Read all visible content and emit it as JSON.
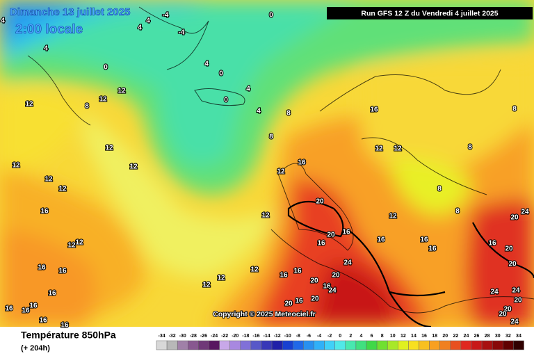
{
  "header": {
    "date": "Dimanche 13 juillet 2025",
    "time": "2:00 locale",
    "run": "Run GFS 12 Z du Vendredi 4 juillet 2025",
    "copyright": "Copyright © 2025 Meteociel.fr"
  },
  "legend": {
    "title": "Température 850hPa",
    "lead": "(+ 204h)",
    "scale": [
      {
        "value": -34,
        "color": "#d8d8d8"
      },
      {
        "value": -32,
        "color": "#b8b8b8"
      },
      {
        "value": -30,
        "color": "#a080a8"
      },
      {
        "value": -28,
        "color": "#885890"
      },
      {
        "value": -26,
        "color": "#703878"
      },
      {
        "value": -24,
        "color": "#581860"
      },
      {
        "value": -22,
        "color": "#c8a8e8"
      },
      {
        "value": -20,
        "color": "#a888e0"
      },
      {
        "value": -18,
        "color": "#8070d8"
      },
      {
        "value": -16,
        "color": "#5858c8"
      },
      {
        "value": -14,
        "color": "#3838b8"
      },
      {
        "value": -12,
        "color": "#2020a8"
      },
      {
        "value": -10,
        "color": "#1840d0"
      },
      {
        "value": -8,
        "color": "#2068e8"
      },
      {
        "value": -6,
        "color": "#2890f0"
      },
      {
        "value": -4,
        "color": "#30b0f8"
      },
      {
        "value": -2,
        "color": "#40d0f8"
      },
      {
        "value": 0,
        "color": "#50e8e8"
      },
      {
        "value": 2,
        "color": "#48e8b0"
      },
      {
        "value": 4,
        "color": "#40e080"
      },
      {
        "value": 6,
        "color": "#40d848"
      },
      {
        "value": 8,
        "color": "#70e030"
      },
      {
        "value": 10,
        "color": "#a8e828"
      },
      {
        "value": 12,
        "color": "#e0f020"
      },
      {
        "value": 14,
        "color": "#f8e020"
      },
      {
        "value": 16,
        "color": "#f8c020"
      },
      {
        "value": 18,
        "color": "#f8a020"
      },
      {
        "value": 20,
        "color": "#f08020"
      },
      {
        "value": 22,
        "color": "#e85020"
      },
      {
        "value": 24,
        "color": "#e02820"
      },
      {
        "value": 26,
        "color": "#c81818"
      },
      {
        "value": 28,
        "color": "#a81010"
      },
      {
        "value": 30,
        "color": "#880808"
      },
      {
        "value": 32,
        "color": "#600000"
      },
      {
        "value": 34,
        "color": "#300000"
      }
    ]
  },
  "contour_labels": [
    -4,
    0,
    -4,
    4,
    4,
    4,
    4,
    0,
    4,
    0,
    4,
    0,
    4,
    8,
    8,
    12,
    12,
    8,
    12,
    12,
    12,
    12,
    12,
    16,
    12,
    12,
    16,
    16,
    12,
    12,
    8,
    8,
    8,
    8,
    20,
    16,
    20,
    16,
    16,
    12,
    16,
    16,
    16,
    20,
    20,
    20,
    24,
    12,
    12,
    16,
    16,
    24,
    20,
    16,
    20,
    24,
    20,
    20,
    16,
    24,
    24,
    20,
    20,
    20,
    24,
    16,
    16,
    16,
    16,
    16,
    16,
    16,
    16,
    12,
    12,
    12,
    12
  ]
}
